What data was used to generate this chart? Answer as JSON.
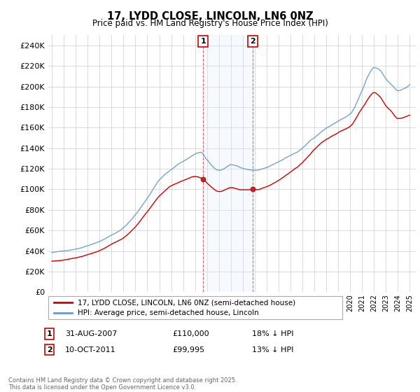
{
  "title": "17, LYDD CLOSE, LINCOLN, LN6 0NZ",
  "subtitle": "Price paid vs. HM Land Registry's House Price Index (HPI)",
  "legend_line1": "17, LYDD CLOSE, LINCOLN, LN6 0NZ (semi-detached house)",
  "legend_line2": "HPI: Average price, semi-detached house, Lincoln",
  "footnote": "Contains HM Land Registry data © Crown copyright and database right 2025.\nThis data is licensed under the Open Government Licence v3.0.",
  "sale1_date": "31-AUG-2007",
  "sale1_price": "£110,000",
  "sale1_hpi": "18% ↓ HPI",
  "sale2_date": "10-OCT-2011",
  "sale2_price": "£99,995",
  "sale2_hpi": "13% ↓ HPI",
  "ylim": [
    0,
    250000
  ],
  "yticks": [
    0,
    20000,
    40000,
    60000,
    80000,
    100000,
    120000,
    140000,
    160000,
    180000,
    200000,
    220000,
    240000
  ],
  "red_color": "#cc0000",
  "blue_color": "#6699cc",
  "shaded_color": "#ddeeff",
  "background_color": "#ffffff",
  "grid_color": "#cccccc",
  "sale1_x": 2007.67,
  "sale2_x": 2011.83
}
